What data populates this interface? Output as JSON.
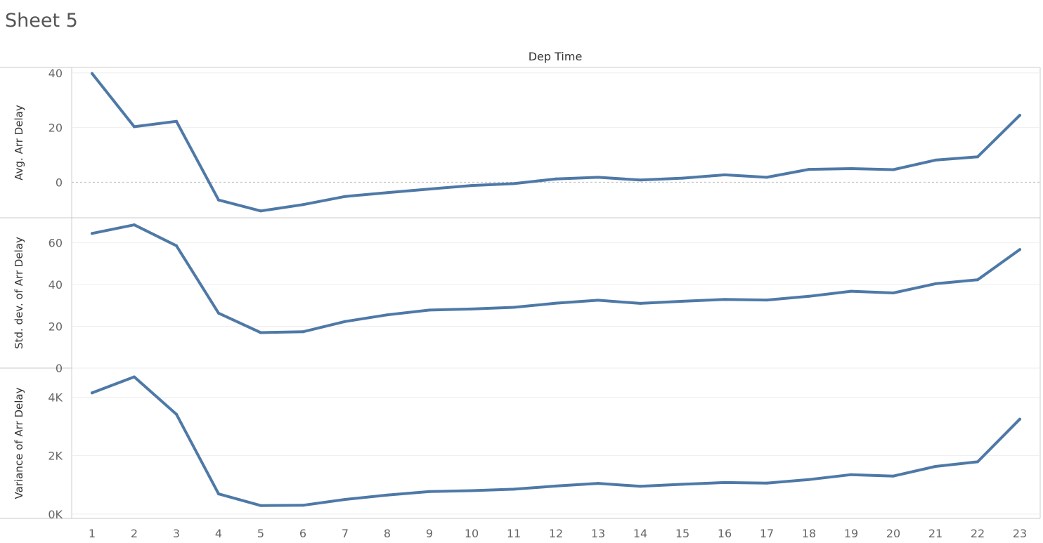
{
  "sheet": {
    "title": "Sheet 5"
  },
  "chart_data": {
    "type": "line",
    "column_header": "Dep Time",
    "x": [
      1,
      2,
      3,
      4,
      5,
      6,
      7,
      8,
      9,
      10,
      11,
      12,
      13,
      14,
      15,
      16,
      17,
      18,
      19,
      20,
      21,
      22,
      23
    ],
    "line_color": "#4e79a7",
    "grid": true,
    "panels": [
      {
        "ylabel": "Avg. Arr Delay",
        "ylim": [
          -13,
          42
        ],
        "ticks": [
          {
            "v": 0,
            "label": "0"
          },
          {
            "v": 20,
            "label": "20"
          },
          {
            "v": 40,
            "label": "40"
          }
        ],
        "zero_line": true,
        "values": [
          39.8,
          20.3,
          22.3,
          -6.5,
          -10.5,
          -8.2,
          -5.2,
          -3.8,
          -2.5,
          -1.2,
          -0.5,
          1.2,
          1.8,
          0.8,
          1.5,
          2.7,
          1.8,
          4.7,
          5.0,
          4.6,
          8.1,
          9.3,
          24.5
        ]
      },
      {
        "ylabel": "Std. dev. of Arr Delay",
        "ylim": [
          0,
          72
        ],
        "ticks": [
          {
            "v": 0,
            "label": "0"
          },
          {
            "v": 20,
            "label": "20"
          },
          {
            "v": 40,
            "label": "40"
          },
          {
            "v": 60,
            "label": "60"
          }
        ],
        "zero_line": false,
        "values": [
          64.5,
          68.6,
          58.6,
          26.3,
          17.0,
          17.4,
          22.3,
          25.5,
          27.8,
          28.3,
          29.1,
          31.1,
          32.5,
          31.0,
          32.0,
          32.9,
          32.6,
          34.4,
          36.8,
          36.0,
          40.4,
          42.3,
          56.8
        ]
      },
      {
        "ylabel": "Variance of Arr Delay",
        "ylim": [
          -150,
          5000
        ],
        "ticks": [
          {
            "v": 0,
            "label": "0K"
          },
          {
            "v": 2000,
            "label": "2K"
          },
          {
            "v": 4000,
            "label": "4K"
          }
        ],
        "zero_line": false,
        "values": [
          4150,
          4700,
          3420,
          690,
          290,
          300,
          500,
          650,
          770,
          800,
          850,
          960,
          1050,
          950,
          1020,
          1080,
          1060,
          1180,
          1350,
          1300,
          1630,
          1790,
          3250
        ]
      }
    ]
  }
}
